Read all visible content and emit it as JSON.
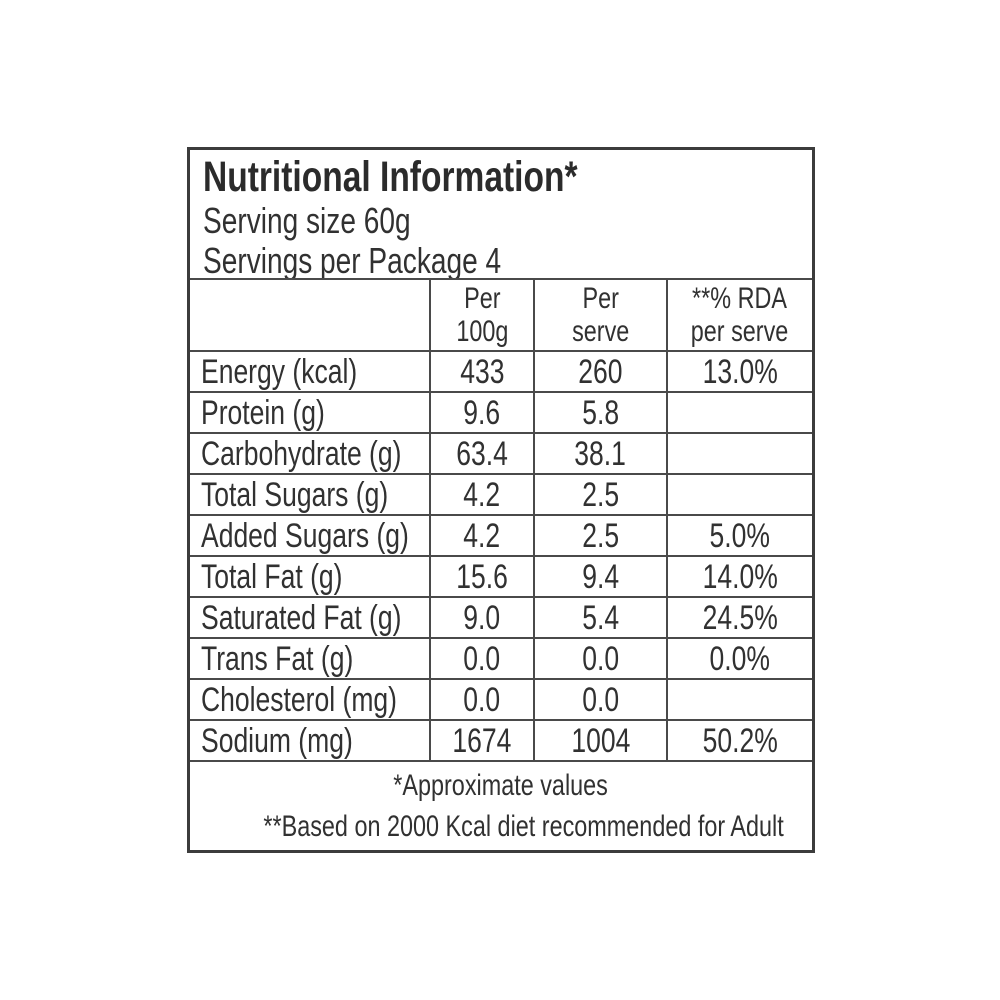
{
  "label": {
    "title": "Nutritional Information*",
    "serving_size": "Serving size 60g",
    "servings_per_package": "Servings per Package 4"
  },
  "table": {
    "column_headers": [
      {
        "line1": "Per",
        "line2": "100g"
      },
      {
        "line1": "Per",
        "line2": "serve"
      },
      {
        "line1": "**% RDA",
        "line2": "per serve"
      }
    ],
    "rows": [
      {
        "label": "Energy (kcal)",
        "per_100g": "433",
        "per_serve": "260",
        "rda_per_serve": "13.0%"
      },
      {
        "label": "Protein (g)",
        "per_100g": "9.6",
        "per_serve": "5.8",
        "rda_per_serve": ""
      },
      {
        "label": "Carbohydrate (g)",
        "per_100g": "63.4",
        "per_serve": "38.1",
        "rda_per_serve": ""
      },
      {
        "label": "Total Sugars (g)",
        "per_100g": "4.2",
        "per_serve": "2.5",
        "rda_per_serve": ""
      },
      {
        "label": "Added Sugars (g)",
        "per_100g": "4.2",
        "per_serve": "2.5",
        "rda_per_serve": "5.0%"
      },
      {
        "label": "Total Fat (g)",
        "per_100g": "15.6",
        "per_serve": "9.4",
        "rda_per_serve": "14.0%"
      },
      {
        "label": "Saturated Fat (g)",
        "per_100g": "9.0",
        "per_serve": "5.4",
        "rda_per_serve": "24.5%"
      },
      {
        "label": "Trans Fat (g)",
        "per_100g": "0.0",
        "per_serve": "0.0",
        "rda_per_serve": "0.0%"
      },
      {
        "label": "Cholesterol (mg)",
        "per_100g": "0.0",
        "per_serve": "0.0",
        "rda_per_serve": ""
      },
      {
        "label": "Sodium (mg)",
        "per_100g": "1674",
        "per_serve": "1004",
        "rda_per_serve": "50.2%"
      }
    ]
  },
  "footnotes": {
    "approximate": "*Approximate values",
    "rda_basis": "**Based on 2000 Kcal diet recommended for Adult"
  },
  "colors": {
    "text": "#313131",
    "grid_line": "#4a4a4a",
    "outer_border": "#3c3c3c",
    "background": "#ffffff"
  }
}
